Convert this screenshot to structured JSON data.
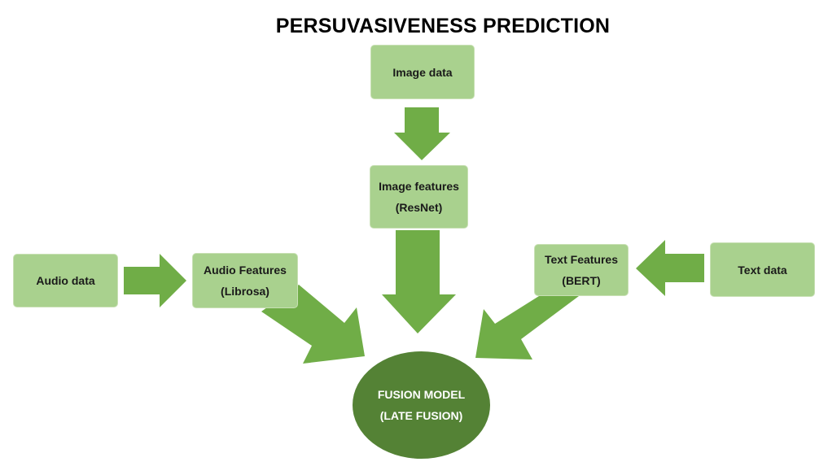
{
  "title": "PERSUVASIVENESS PREDICTION",
  "nodes": {
    "image_data": {
      "label": "Image data"
    },
    "image_features": {
      "line1": "Image features",
      "line2": "(ResNet)"
    },
    "audio_data": {
      "label": "Audio data"
    },
    "audio_features": {
      "line1": "Audio Features",
      "line2": "(Librosa)"
    },
    "text_features": {
      "line1": "Text Features",
      "line2": "(BERT)"
    },
    "text_data": {
      "label": "Text data"
    },
    "fusion_model": {
      "line1": "FUSION MODEL",
      "line2": "(LATE FUSION)"
    }
  },
  "colors": {
    "box_fill": "#a9d18e",
    "arrow_fill": "#70ad47",
    "ellipse_fill": "#548235",
    "ellipse_text": "#ffffff"
  }
}
